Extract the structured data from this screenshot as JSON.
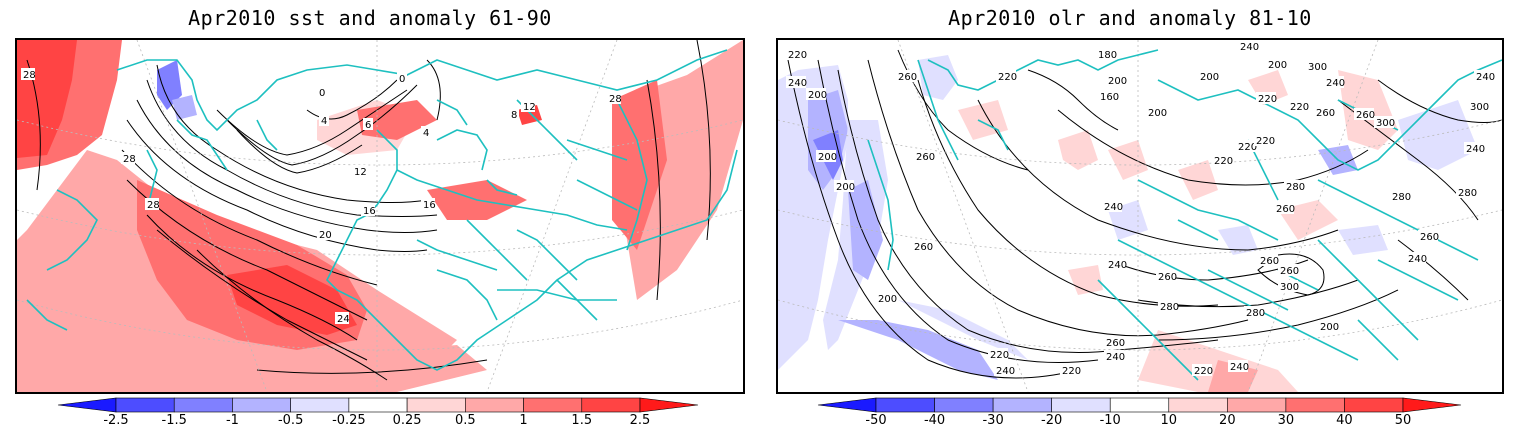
{
  "panels": [
    {
      "title": "Apr2010 sst and anomaly 61-90",
      "variable": "sst",
      "colorbar": {
        "labels": [
          "-2.5",
          "-1.5",
          "-1",
          "-0.5",
          "-0.25",
          "0.25",
          "0.5",
          "1",
          "1.5",
          "2.5"
        ],
        "colors": [
          "#1a1aff",
          "#4d4dff",
          "#8080ff",
          "#b3b3ff",
          "#e0e0ff",
          "#ffffff",
          "#ffd6d6",
          "#ffa8a8",
          "#ff7070",
          "#ff4444",
          "#ff1a1a"
        ]
      },
      "contour_labels": [
        "28",
        "28",
        "28",
        "28",
        "0",
        "0",
        "4",
        "6",
        "4",
        "12",
        "16",
        "16",
        "20",
        "24",
        "8",
        "12"
      ]
    },
    {
      "title": "Apr2010 olr and anomaly 81-10",
      "variable": "olr",
      "colorbar": {
        "labels": [
          "-50",
          "-40",
          "-30",
          "-20",
          "-10",
          "10",
          "20",
          "30",
          "40",
          "50"
        ],
        "colors": [
          "#1a1aff",
          "#4d4dff",
          "#8080ff",
          "#b3b3ff",
          "#e0e0ff",
          "#ffffff",
          "#ffd6d6",
          "#ffa8a8",
          "#ff7070",
          "#ff4444",
          "#ff1a1a"
        ]
      },
      "contour_labels": [
        "220",
        "240",
        "200",
        "260",
        "180",
        "200",
        "220",
        "160",
        "200",
        "200",
        "220",
        "200",
        "240",
        "220",
        "300",
        "240",
        "260",
        "300",
        "240",
        "300",
        "260",
        "220",
        "220",
        "220",
        "280",
        "260",
        "280",
        "240",
        "260",
        "240",
        "260",
        "280",
        "260",
        "300",
        "280",
        "260",
        "200",
        "260",
        "240",
        "220",
        "240",
        "220",
        "220",
        "240",
        "240",
        "200",
        "200",
        "260",
        "200",
        "240",
        "280",
        "260"
      ]
    }
  ]
}
